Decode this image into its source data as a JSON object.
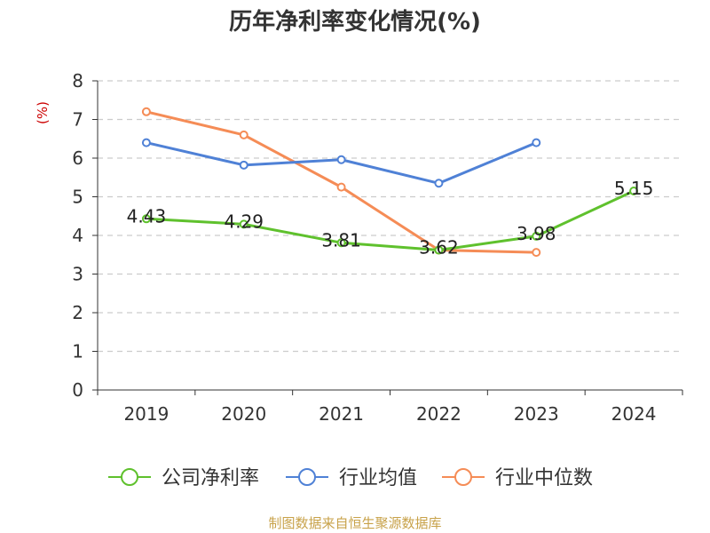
{
  "chart_data": {
    "type": "line",
    "title": "历年净利率变化情况(%)",
    "ylabel": "(%)",
    "categories": [
      "2019",
      "2020",
      "2021",
      "2022",
      "2023",
      "2024"
    ],
    "ylim": [
      0,
      8
    ],
    "yticks": [
      0,
      1,
      2,
      3,
      4,
      5,
      6,
      7,
      8
    ],
    "grid": true,
    "legend_position": "bottom",
    "series": [
      {
        "name": "公司净利率",
        "color": "#5fc12d",
        "values": [
          4.43,
          4.29,
          3.81,
          3.62,
          3.98,
          5.15
        ],
        "show_labels": true
      },
      {
        "name": "行业均值",
        "color": "#4f81d6",
        "values": [
          6.4,
          5.82,
          5.96,
          5.35,
          6.4,
          null
        ],
        "show_labels": false
      },
      {
        "name": "行业中位数",
        "color": "#f58c56",
        "values": [
          7.2,
          6.6,
          5.25,
          3.62,
          3.56,
          null
        ],
        "show_labels": false
      }
    ]
  },
  "source_note": "制图数据来自恒生聚源数据库"
}
